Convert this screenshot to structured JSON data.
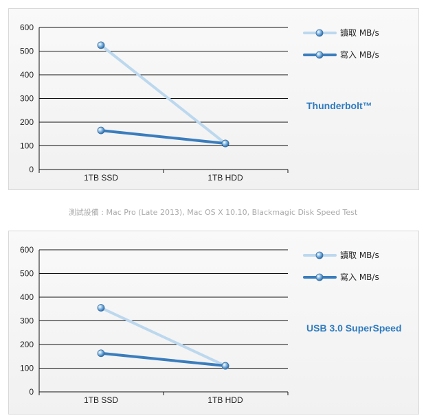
{
  "caption": "測試設備 : Mac Pro (Late 2013), Mac OS X 10.10, Blackmagic Disk Speed Test",
  "colors": {
    "read": "#bcd8ee",
    "write": "#3a7dbd",
    "accent": "#2f7bbf"
  },
  "chart_data": [
    {
      "type": "line",
      "interface_label": "Thunderbolt™",
      "categories": [
        "1TB SSD",
        "1TB HDD"
      ],
      "ylim": [
        0,
        600
      ],
      "yticks": [
        0,
        100,
        200,
        300,
        400,
        500,
        600
      ],
      "grid": true,
      "legend_position": "top-right",
      "series": [
        {
          "name": "讀取 MB/s",
          "color": "#bcd8ee",
          "values": [
            525,
            110
          ]
        },
        {
          "name": "寫入 MB/s",
          "color": "#3a7dbd",
          "values": [
            165,
            110
          ]
        }
      ]
    },
    {
      "type": "line",
      "interface_label": "USB 3.0 SuperSpeed",
      "categories": [
        "1TB SSD",
        "1TB HDD"
      ],
      "ylim": [
        0,
        600
      ],
      "yticks": [
        0,
        100,
        200,
        300,
        400,
        500,
        600
      ],
      "grid": true,
      "legend_position": "top-right",
      "series": [
        {
          "name": "讀取 MB/s",
          "color": "#bcd8ee",
          "values": [
            355,
            110
          ]
        },
        {
          "name": "寫入 MB/s",
          "color": "#3a7dbd",
          "values": [
            163,
            110
          ]
        }
      ]
    }
  ]
}
